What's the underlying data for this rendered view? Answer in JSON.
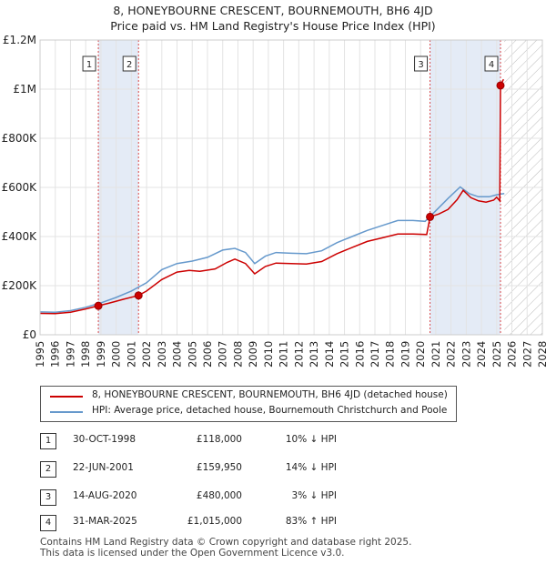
{
  "title_line1": "8, HONEYBOURNE CRESCENT, BOURNEMOUTH, BH6 4JD",
  "title_line2": "Price paid vs. HM Land Registry's House Price Index (HPI)",
  "chart_data": {
    "type": "line",
    "xlim": [
      1995,
      2028
    ],
    "ylim": [
      0,
      1200000
    ],
    "x_ticks": [
      "1995",
      "1996",
      "1997",
      "1998",
      "1999",
      "2000",
      "2001",
      "2002",
      "2003",
      "2004",
      "2005",
      "2006",
      "2007",
      "2008",
      "2009",
      "2010",
      "2011",
      "2012",
      "2013",
      "2014",
      "2015",
      "2016",
      "2017",
      "2018",
      "2019",
      "2020",
      "2021",
      "2022",
      "2023",
      "2024",
      "2025",
      "2026",
      "2027",
      "2028"
    ],
    "y_ticks": [
      {
        "value": 0,
        "label": "£0"
      },
      {
        "value": 200000,
        "label": "£200K"
      },
      {
        "value": 400000,
        "label": "£400K"
      },
      {
        "value": 600000,
        "label": "£600K"
      },
      {
        "value": 800000,
        "label": "£800K"
      },
      {
        "value": 1000000,
        "label": "£1M"
      },
      {
        "value": 1200000,
        "label": "£1.2M"
      }
    ],
    "hatch_start": 2025.5,
    "shaded_bands": [
      [
        1998.83,
        2001.47
      ],
      [
        2020.62,
        2025.25
      ]
    ],
    "series": [
      {
        "name": "8, HONEYBOURNE CRESCENT, BOURNEMOUTH, BH6 4JD (detached house)",
        "color": "#cc0000",
        "points": [
          [
            1995,
            87000
          ],
          [
            1996,
            86000
          ],
          [
            1997,
            92000
          ],
          [
            1998,
            105000
          ],
          [
            1998.83,
            118000
          ],
          [
            1999.5,
            128000
          ],
          [
            2000.5,
            145000
          ],
          [
            2001.47,
            159950
          ],
          [
            2002,
            178000
          ],
          [
            2003,
            225000
          ],
          [
            2004,
            255000
          ],
          [
            2004.8,
            262000
          ],
          [
            2005.5,
            258000
          ],
          [
            2006.5,
            268000
          ],
          [
            2007.3,
            295000
          ],
          [
            2007.8,
            308000
          ],
          [
            2008.5,
            290000
          ],
          [
            2009.1,
            248000
          ],
          [
            2009.8,
            278000
          ],
          [
            2010.5,
            292000
          ],
          [
            2011.5,
            290000
          ],
          [
            2012.5,
            288000
          ],
          [
            2013.5,
            298000
          ],
          [
            2014.5,
            330000
          ],
          [
            2015.5,
            355000
          ],
          [
            2016.5,
            380000
          ],
          [
            2017.5,
            395000
          ],
          [
            2018.5,
            410000
          ],
          [
            2019.5,
            410000
          ],
          [
            2020.4,
            408000
          ],
          [
            2020.62,
            480000
          ],
          [
            2021.2,
            492000
          ],
          [
            2021.8,
            510000
          ],
          [
            2022.4,
            550000
          ],
          [
            2022.8,
            588000
          ],
          [
            2023.3,
            558000
          ],
          [
            2023.8,
            545000
          ],
          [
            2024.3,
            540000
          ],
          [
            2024.8,
            548000
          ],
          [
            2025.0,
            560000
          ],
          [
            2025.2,
            545000
          ],
          [
            2025.25,
            1015000
          ],
          [
            2025.45,
            1040000
          ]
        ]
      },
      {
        "name": "HPI: Average price, detached house, Bournemouth Christchurch and Poole",
        "color": "#6699cc",
        "points": [
          [
            1995,
            93000
          ],
          [
            1996,
            92000
          ],
          [
            1997,
            98000
          ],
          [
            1998,
            112000
          ],
          [
            1999,
            130000
          ],
          [
            2000,
            152000
          ],
          [
            2001,
            178000
          ],
          [
            2002,
            212000
          ],
          [
            2003,
            265000
          ],
          [
            2004,
            290000
          ],
          [
            2005,
            300000
          ],
          [
            2006,
            315000
          ],
          [
            2007,
            345000
          ],
          [
            2007.8,
            352000
          ],
          [
            2008.5,
            335000
          ],
          [
            2009.1,
            290000
          ],
          [
            2009.8,
            320000
          ],
          [
            2010.5,
            335000
          ],
          [
            2011.5,
            332000
          ],
          [
            2012.5,
            330000
          ],
          [
            2013.5,
            342000
          ],
          [
            2014.5,
            375000
          ],
          [
            2015.5,
            400000
          ],
          [
            2016.5,
            425000
          ],
          [
            2017.5,
            445000
          ],
          [
            2018.5,
            465000
          ],
          [
            2019.5,
            465000
          ],
          [
            2020.3,
            462000
          ],
          [
            2021,
            505000
          ],
          [
            2021.8,
            555000
          ],
          [
            2022.6,
            602000
          ],
          [
            2023.2,
            575000
          ],
          [
            2023.8,
            562000
          ],
          [
            2024.5,
            562000
          ],
          [
            2025,
            570000
          ],
          [
            2025.5,
            575000
          ]
        ]
      }
    ],
    "markers": [
      {
        "label": "1",
        "x": 1998.83,
        "y": 118000
      },
      {
        "label": "2",
        "x": 2001.47,
        "y": 159950
      },
      {
        "label": "3",
        "x": 2020.62,
        "y": 480000
      },
      {
        "label": "4",
        "x": 2025.25,
        "y": 1015000
      }
    ]
  },
  "legend": {
    "property_label": "8, HONEYBOURNE CRESCENT, BOURNEMOUTH, BH6 4JD (detached house)",
    "hpi_label": "HPI: Average price, detached house, Bournemouth Christchurch and Poole",
    "property_color": "#cc0000",
    "hpi_color": "#6699cc"
  },
  "transactions": [
    {
      "num": "1",
      "date": "30-OCT-1998",
      "price": "£118,000",
      "hpi": "10% ↓ HPI"
    },
    {
      "num": "2",
      "date": "22-JUN-2001",
      "price": "£159,950",
      "hpi": "14% ↓ HPI"
    },
    {
      "num": "3",
      "date": "14-AUG-2020",
      "price": "£480,000",
      "hpi": "3% ↓ HPI"
    },
    {
      "num": "4",
      "date": "31-MAR-2025",
      "price": "£1,015,000",
      "hpi": "83% ↑ HPI"
    }
  ],
  "footer_line1": "Contains HM Land Registry data © Crown copyright and database right 2025.",
  "footer_line2": "This data is licensed under the Open Government Licence v3.0."
}
